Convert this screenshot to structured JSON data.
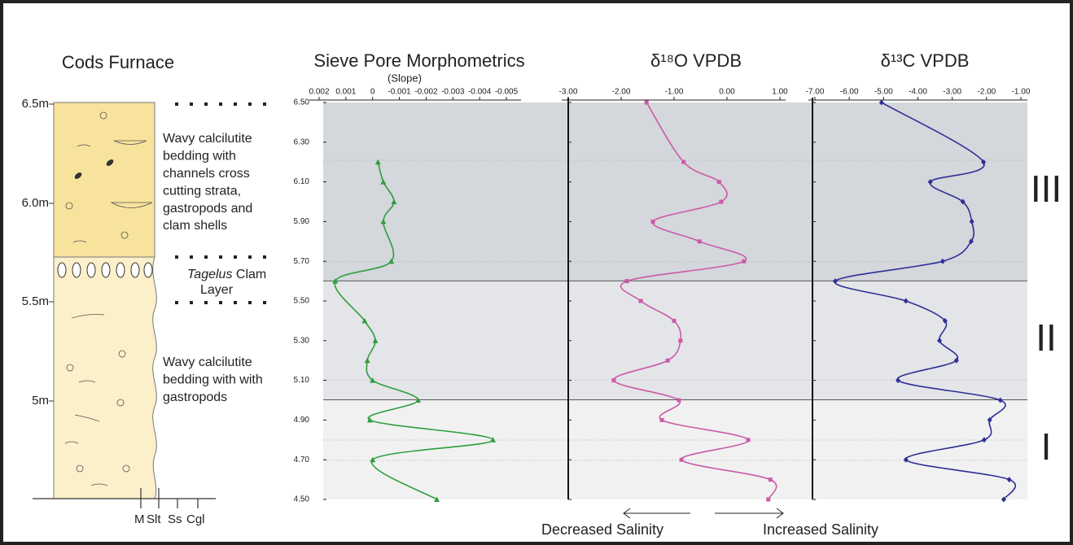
{
  "column": {
    "title": "Cods Furnace",
    "depth_labels": [
      "6.5m",
      "6.0m",
      "5.5m",
      "5m"
    ],
    "unit_upper": [
      "Wavy calcilutite",
      "bedding with",
      "channels cross",
      "cutting strata,",
      "gastropods and",
      "clam shells"
    ],
    "clam_genus": "Tagelus",
    "clam_lines": [
      "Clam",
      "Layer"
    ],
    "unit_lower": [
      "Wavy calcilutite",
      "bedding with with",
      "gastropods"
    ],
    "grain_sizes": [
      "M",
      "Slt",
      "Ss",
      "Cgl"
    ]
  },
  "zones": [
    {
      "label": "III",
      "top": 6.5,
      "bottom": 5.6,
      "color": "#d4d7db"
    },
    {
      "label": "II",
      "top": 5.6,
      "bottom": 5.0,
      "color": "#e3e5e8"
    },
    {
      "label": "I",
      "top": 5.0,
      "bottom": 4.5,
      "color": "#f1f1f1"
    }
  ],
  "salinity": {
    "left": "Decreased Salinity",
    "right": "Increased Salinity"
  },
  "chart_data": [
    {
      "type": "line",
      "title": "Sieve Pore Morphometrics",
      "subtitle": "(Slope)",
      "color": "#2e9e3e",
      "marker": "triangle",
      "y": [
        6.2,
        6.1,
        6.0,
        5.9,
        5.7,
        5.6,
        5.4,
        5.3,
        5.2,
        5.1,
        5.0,
        4.9,
        4.8,
        4.7,
        4.5
      ],
      "values": [
        -0.0002,
        -0.0004,
        -0.0008,
        -0.0004,
        -0.0007,
        0.0014,
        0.0003,
        -0.0001,
        0.0002,
        0,
        -0.0017,
        0.0001,
        -0.0045,
        0,
        -0.0024
      ],
      "xlim": [
        0.002,
        -0.005
      ],
      "xticks": [
        0.002,
        0.001,
        0,
        -0.001,
        -0.002,
        -0.003,
        -0.004,
        -0.005
      ],
      "ylim": [
        4.5,
        6.5
      ],
      "yticks": [
        {
          "value": 6.5,
          "label": "6.50"
        },
        {
          "value": 6.3,
          "label": "6.30"
        },
        {
          "value": 6.1,
          "label": "6.10"
        },
        {
          "value": 5.9,
          "label": "5.90"
        },
        {
          "value": 5.7,
          "label": "5.70"
        },
        {
          "value": 5.5,
          "label": "5.50"
        },
        {
          "value": 5.3,
          "label": "5.30"
        },
        {
          "value": 5.1,
          "label": "5.10"
        },
        {
          "value": 4.9,
          "label": "4.90"
        },
        {
          "value": 4.7,
          "label": "4.70"
        },
        {
          "value": 4.5,
          "label": "4.50"
        }
      ]
    },
    {
      "type": "line",
      "title": "δ¹⁸O VPDB",
      "color": "#cc5aa8",
      "marker": "square",
      "y": [
        6.5,
        6.2,
        6.1,
        6.0,
        5.9,
        5.8,
        5.7,
        5.6,
        5.5,
        5.4,
        5.3,
        5.2,
        5.1,
        5.0,
        4.9,
        4.8,
        4.7,
        4.6,
        4.5
      ],
      "values": [
        -1.52,
        -0.82,
        -0.15,
        -0.11,
        -1.4,
        -0.52,
        0.32,
        -1.89,
        -1.63,
        -1.0,
        -0.88,
        -1.12,
        -2.14,
        -0.91,
        -1.23,
        0.4,
        -0.86,
        0.82,
        0.78
      ],
      "xlim": [
        -3,
        1
      ],
      "xticks": [
        {
          "value": -3,
          "label": "-3.00"
        },
        {
          "value": -2,
          "label": "-2.00"
        },
        {
          "value": -1,
          "label": "-1.00"
        },
        {
          "value": 0,
          "label": "0.00"
        },
        {
          "value": 1,
          "label": "1.00"
        }
      ]
    },
    {
      "type": "line",
      "title": "δ¹³C VPDB",
      "color": "#2e2f96",
      "marker": "diamond",
      "y": [
        6.5,
        6.2,
        6.1,
        6.0,
        5.9,
        5.8,
        5.7,
        5.6,
        5.5,
        5.4,
        5.3,
        5.2,
        5.1,
        5.0,
        4.9,
        4.8,
        4.7,
        4.6,
        4.5
      ],
      "values": [
        -5.06,
        -2.09,
        -3.64,
        -2.69,
        -2.43,
        -2.45,
        -3.28,
        -6.41,
        -4.35,
        -3.21,
        -3.37,
        -2.88,
        -4.58,
        -1.6,
        -1.91,
        -2.07,
        -4.35,
        -1.34,
        -1.5
      ],
      "xlim": [
        -7,
        -1
      ],
      "xticks": [
        {
          "value": -7,
          "label": "-7.00"
        },
        {
          "value": -6,
          "label": "-6.00"
        },
        {
          "value": -5,
          "label": "-5.00"
        },
        {
          "value": -4,
          "label": "-4.00"
        },
        {
          "value": -3,
          "label": "-3.00"
        },
        {
          "value": -2,
          "label": "-2.00"
        },
        {
          "value": -1,
          "label": "-1.00"
        }
      ]
    }
  ]
}
